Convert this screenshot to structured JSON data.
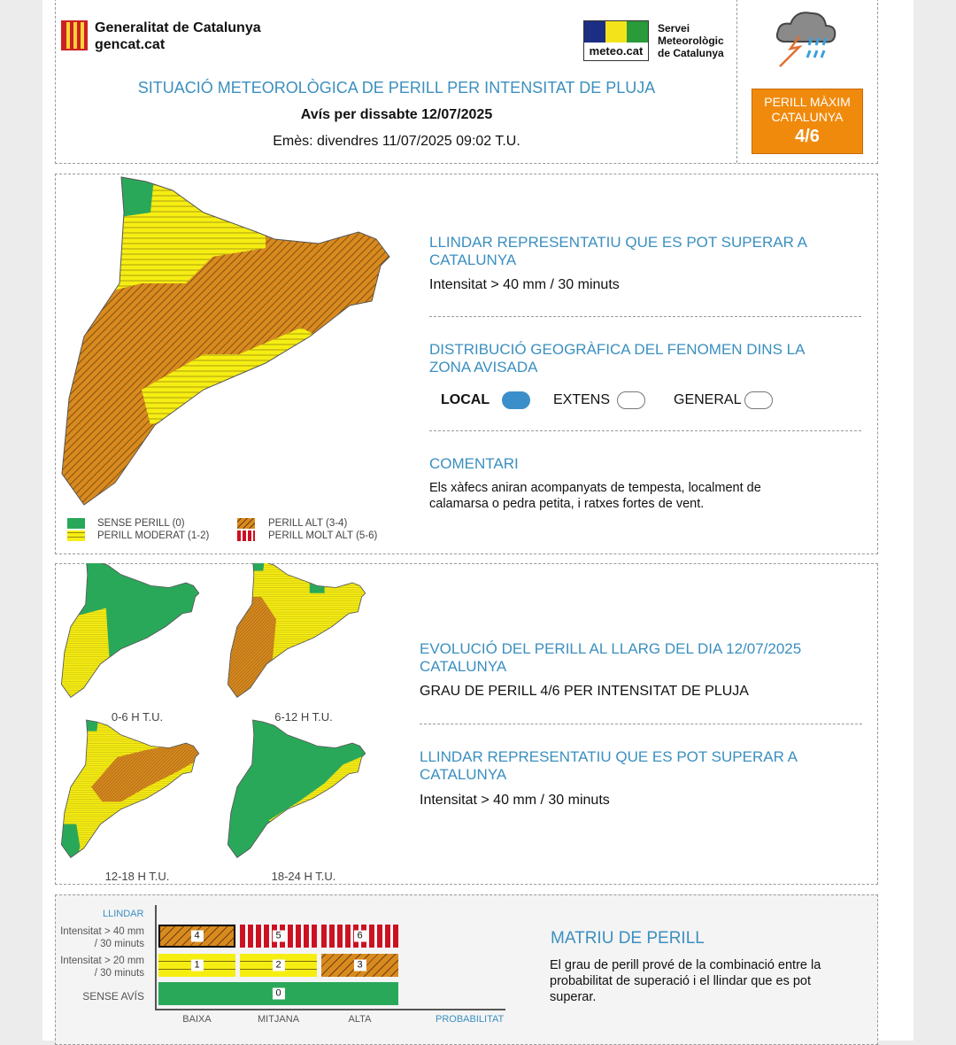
{
  "header": {
    "org_name": "Generalitat de Catalunya",
    "org_site": "gencat.cat",
    "smc_logo_text": "meteo.cat",
    "smc_name": [
      "Servei",
      "Meteorològic",
      "de Catalunya"
    ],
    "title": "SITUACIÓ METEOROLÒGICA DE PERILL PER INTENSITAT DE PLUJA",
    "forecast_day": "Avís per dissabte 12/07/2025",
    "issued": "Emès: divendres 11/07/2025 09:02 T.U.",
    "max_badge": {
      "line1": "PERILL MÀXIM",
      "line2": "CATALUNYA",
      "level": "4/6",
      "color": "#f08a0c"
    },
    "weather_icon": "thunderstorm-rain-icon"
  },
  "colors": {
    "green": "#2aa85a",
    "yellow": "#f6ee12",
    "orange": "#d98a1e",
    "red": "#cc1122",
    "accent": "#3b8fbf"
  },
  "main": {
    "threshold_title": "LLINDAR REPRESENTATIU QUE ES POT SUPERAR A CATALUNYA",
    "threshold_value": "Intensitat > 40 mm / 30 minuts",
    "distribution_title": "DISTRIBUCIÓ GEOGRÀFICA DEL FENOMEN DINS LA ZONA AVISADA",
    "distribution": [
      {
        "label": "LOCAL",
        "selected": true
      },
      {
        "label": "EXTENS",
        "selected": false
      },
      {
        "label": "GENERAL",
        "selected": false
      }
    ],
    "comment_title": "COMENTARI",
    "comment": "Els xàfecs aniran acompanyats de tempesta, localment de calamarsa o pedra petita, i ratxes fortes de vent.",
    "legend": [
      "SENSE PERILL (0)",
      "PERILL MODERAT (1-2)",
      "PERILL ALT (3-4)",
      "PERILL MOLT ALT (5-6)"
    ]
  },
  "evolution": {
    "maps": [
      {
        "label": "0-6 H T.U."
      },
      {
        "label": "6-12 H T.U."
      },
      {
        "label": "12-18 H T.U."
      },
      {
        "label": "18-24 H T.U."
      }
    ],
    "title": "EVOLUCIÓ DEL PERILL AL LLARG DEL DIA 12/07/2025 CATALUNYA",
    "grade": "GRAU DE PERILL 4/6 PER INTENSITAT DE PLUJA",
    "threshold_title": "LLINDAR REPRESENTATIU QUE ES POT SUPERAR A CATALUNYA",
    "threshold_value": "Intensitat > 40 mm / 30 minuts"
  },
  "matrix": {
    "y_title": "LLINDAR",
    "rows": [
      "Intensitat > 40 mm / 30 minuts",
      "Intensitat > 20 mm / 30 minuts",
      "SENSE AVÍS"
    ],
    "x_labels": [
      "BAIXA",
      "MITJANA",
      "ALTA"
    ],
    "x_title": "PROBABILITAT",
    "cells": [
      "4",
      "5",
      "6",
      "1",
      "2",
      "3",
      "0"
    ],
    "title": "MATRIU DE PERILL",
    "text": "El grau de perill prové de la combinació entre la probabilitat de superació i el llindar que es pot superar."
  }
}
